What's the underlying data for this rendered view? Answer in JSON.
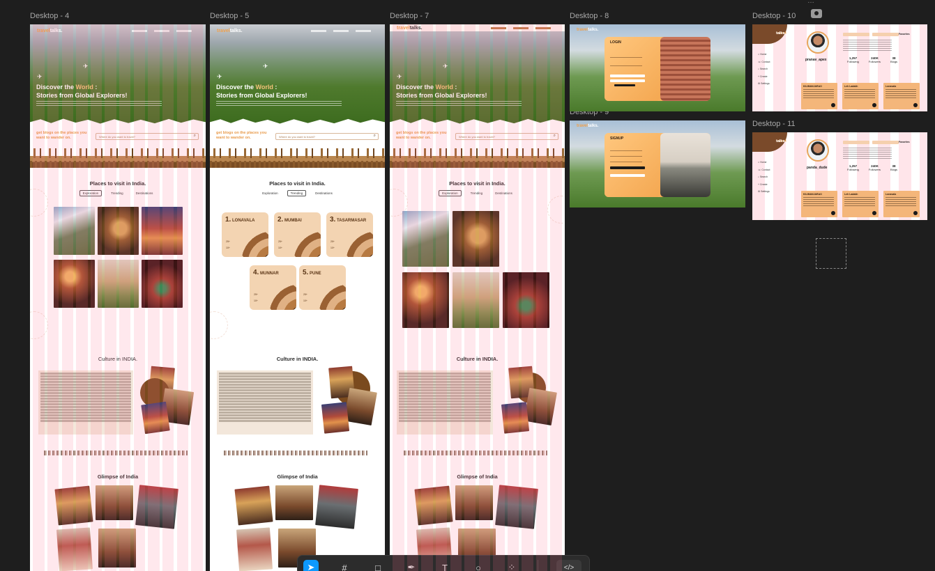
{
  "frames": {
    "d4": "Desktop - 4",
    "d5": "Desktop - 5",
    "d7": "Desktop - 7",
    "d8": "Desktop - 8",
    "d9": "Desktop - 9",
    "d10": "Desktop - 10",
    "d11": "Desktop - 11"
  },
  "site": {
    "logo_a": "travel",
    "logo_b": "talks.",
    "hero_title_1a": "Discover the ",
    "hero_title_1b": "World",
    "hero_title_1c": " :",
    "hero_title_2": "Stories from Global Explorers!",
    "get_blogs_1": "get blogs on the places you",
    "get_blogs_2": "want to wander on.",
    "search_placeholder": "Where do you want to travel?",
    "places_heading": "Places to visit in India.",
    "tabs": [
      "Exploration",
      "Trending",
      "Destinations"
    ],
    "culture_heading": "Culture in INDIA.",
    "glimpse_heading": "Glimpse of India"
  },
  "destinations": [
    {
      "num": "1.",
      "name": "LONAVALA",
      "a": "25+",
      "b": "10+"
    },
    {
      "num": "2.",
      "name": "MUMBAI",
      "a": "25+",
      "b": "10+"
    },
    {
      "num": "3.",
      "name": "TASARMASAR",
      "a": "25+",
      "b": "10+"
    },
    {
      "num": "4.",
      "name": "MUNNAR",
      "a": "25+",
      "b": "10+"
    },
    {
      "num": "5.",
      "name": "PUNE",
      "a": "25+",
      "b": "10+"
    }
  ],
  "auth": {
    "login": "LOGIN",
    "signup": "SIGNUP"
  },
  "profile10": {
    "username": "pranav_apex",
    "stats": [
      {
        "value": "1,257",
        "label": "Following"
      },
      {
        "value": "240K",
        "label": "Followers"
      },
      {
        "value": "38",
        "label": "Blogs"
      }
    ],
    "nav": [
      "Home",
      "Contact",
      "Search",
      "Create",
      "Settings"
    ],
    "cards": [
      "KILIMANJARAO",
      "Leh Ladakh",
      "Lonavala"
    ],
    "favorites": "Favorites"
  },
  "profile11": {
    "username": "panda_dude",
    "stats": [
      {
        "value": "1,257",
        "label": "Following"
      },
      {
        "value": "240K",
        "label": "Followers"
      },
      {
        "value": "38",
        "label": "Blogs"
      }
    ],
    "nav": [
      "Home",
      "Contact",
      "Search",
      "Create",
      "Settings"
    ],
    "cards": [
      "KILIMANJARAO",
      "Leh Ladakh",
      "Lonavala"
    ],
    "favorites": "Favorites"
  },
  "toolbar": {
    "tools": [
      "move-tool",
      "frame-tool",
      "shape-tool",
      "pen-tool",
      "text-tool",
      "comment-tool",
      "actions-tool",
      "dev-mode"
    ]
  }
}
